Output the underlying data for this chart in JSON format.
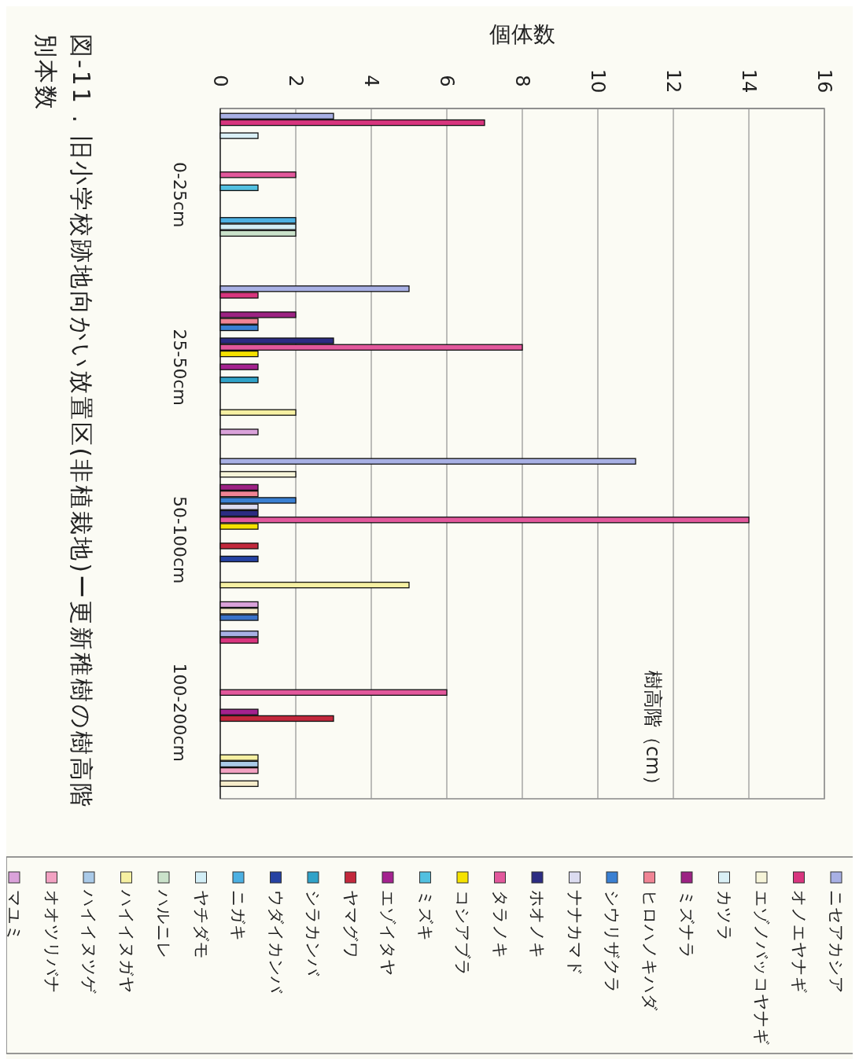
{
  "chart_data": {
    "type": "bar",
    "orientation": "horizontal",
    "title": "図-11 . 旧小学校跡地向かい放置区(非植栽地)ー更新稚樹の樹高階別本数",
    "xlabel": "個体数",
    "ylabel": "樹高階（cm）",
    "categories": [
      "0-25cm",
      "25-50cm",
      "50-100cm",
      "100-200cm"
    ],
    "xlim": [
      0,
      16
    ],
    "xticks": [
      0,
      2,
      4,
      6,
      8,
      10,
      12,
      14,
      16
    ],
    "grid": "x",
    "legend": "bottom",
    "series": [
      {
        "name": "ニセアカシア",
        "color": "#a8b0e4",
        "values": [
          3,
          5,
          11,
          1
        ]
      },
      {
        "name": "オノエヤナギ",
        "color": "#d8357e",
        "values": [
          7,
          1,
          null,
          1
        ]
      },
      {
        "name": "エゾノバッコヤナギ",
        "color": "#f6f4d8",
        "values": [
          null,
          null,
          2,
          null
        ]
      },
      {
        "name": "カツラ",
        "color": "#daf0f6",
        "values": [
          1,
          null,
          null,
          null
        ]
      },
      {
        "name": "ミズナラ",
        "color": "#9c2283",
        "values": [
          null,
          2,
          1,
          null
        ]
      },
      {
        "name": "ヒロハノキハダ",
        "color": "#f08494",
        "values": [
          null,
          1,
          1,
          null
        ]
      },
      {
        "name": "シウリザクラ",
        "color": "#3a80d2",
        "values": [
          null,
          1,
          2,
          null
        ]
      },
      {
        "name": "ナナカマド",
        "color": "#dcdcf0",
        "values": [
          null,
          null,
          1,
          null
        ]
      },
      {
        "name": "ホオノキ",
        "color": "#2c2c82",
        "values": [
          null,
          3,
          1,
          null
        ]
      },
      {
        "name": "タラノキ",
        "color": "#e2589c",
        "values": [
          2,
          8,
          14,
          6
        ]
      },
      {
        "name": "コシアブラ",
        "color": "#f5e200",
        "values": [
          null,
          1,
          1,
          null
        ]
      },
      {
        "name": "ミズキ",
        "color": "#52c0e0",
        "values": [
          1,
          null,
          null,
          null
        ]
      },
      {
        "name": "エゾイタヤ",
        "color": "#a4228f",
        "values": [
          null,
          1,
          null,
          1
        ]
      },
      {
        "name": "ヤマグワ",
        "color": "#c2283c",
        "values": [
          null,
          null,
          1,
          3
        ]
      },
      {
        "name": "シラカンバ",
        "color": "#30a2c8",
        "values": [
          null,
          1,
          null,
          null
        ]
      },
      {
        "name": "ウダイカンバ",
        "color": "#2642a2",
        "values": [
          null,
          null,
          1,
          null
        ]
      },
      {
        "name": "ニガキ",
        "color": "#4cb0e2",
        "values": [
          2,
          null,
          null,
          null
        ]
      },
      {
        "name": "ヤチダモ",
        "color": "#d2eef6",
        "values": [
          2,
          null,
          null,
          null
        ]
      },
      {
        "name": "ハルニレ",
        "color": "#cae2ca",
        "values": [
          2,
          null,
          null,
          null
        ]
      },
      {
        "name": "ハイイヌガヤ",
        "color": "#f6f0a2",
        "values": [
          null,
          2,
          5,
          1
        ]
      },
      {
        "name": "ハイイヌツゲ",
        "color": "#aacae8",
        "values": [
          null,
          null,
          null,
          1
        ]
      },
      {
        "name": "オオツリバナ",
        "color": "#f2a2c2",
        "values": [
          null,
          null,
          null,
          1
        ]
      },
      {
        "name": "マユミ",
        "color": "#daa2da",
        "values": [
          null,
          1,
          1,
          null
        ]
      },
      {
        "color": "#f6ecca",
        "values": [
          null,
          null,
          1,
          1
        ]
      },
      {
        "color": "#3a72c8",
        "values": [
          null,
          null,
          1,
          null
        ]
      }
    ]
  }
}
